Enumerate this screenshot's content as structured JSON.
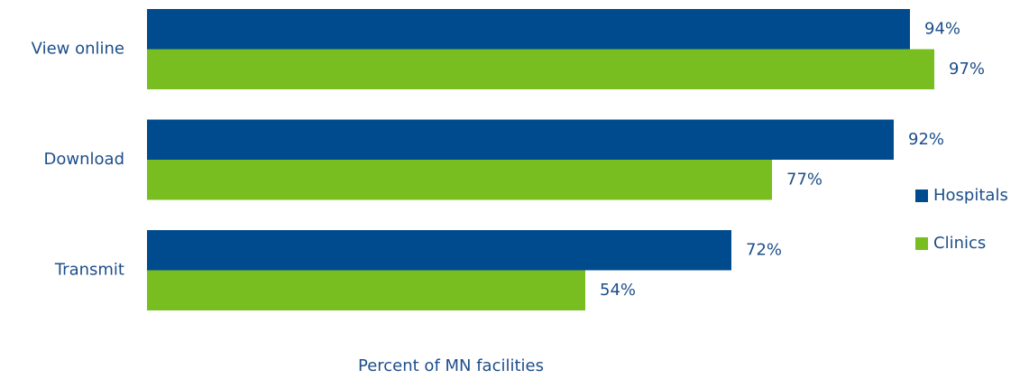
{
  "chart_data": {
    "type": "hbar",
    "categories": [
      "View online",
      "Download",
      "Transmit"
    ],
    "series": [
      {
        "name": "Hospitals",
        "color": "#004b8d",
        "values": [
          94,
          92,
          72
        ],
        "value_labels": [
          "94%",
          "92%",
          "72%"
        ]
      },
      {
        "name": "Clinics",
        "color": "#78be20",
        "values": [
          97,
          77,
          54
        ],
        "value_labels": [
          "97%",
          "77%",
          "54%"
        ]
      }
    ],
    "xlim": [
      0,
      100
    ],
    "x_label": "Percent of MN facilities",
    "legend": "right"
  }
}
